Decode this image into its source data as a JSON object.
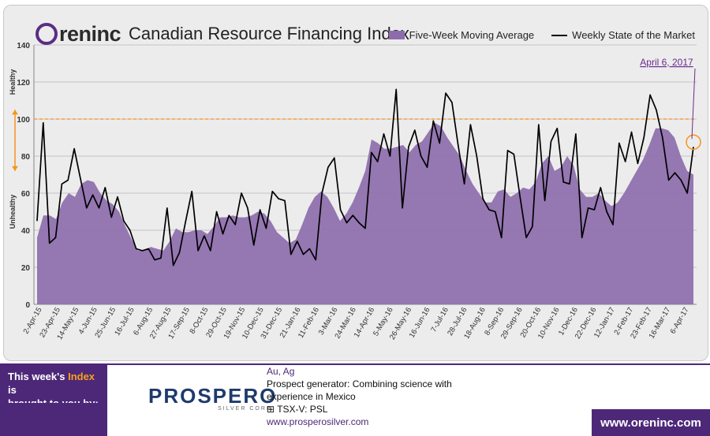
{
  "header": {
    "brand": "reninc",
    "title": "Canadian Resource Financing Index"
  },
  "legend": {
    "area_label": "Five-Week Moving Average",
    "line_label": "Weekly State of the Market"
  },
  "annotation": {
    "date_label": "April 6, 2017"
  },
  "colors": {
    "area": "#8d6cad",
    "line": "#000000",
    "threshold": "#f7931e",
    "annotation": "#6a2c8e",
    "brand": "#4d2878"
  },
  "chart_data": {
    "type": "area",
    "ylim": [
      0,
      140
    ],
    "yticks": [
      0,
      20,
      40,
      60,
      80,
      100,
      120,
      140
    ],
    "threshold": 100,
    "y_side_labels": {
      "upper": "Healthy",
      "lower": "Unhealthy"
    },
    "x_ticks": [
      "2-Apr-15",
      "23-Apr-15",
      "14-May-15",
      "4-Jun-15",
      "25-Jun-15",
      "16-Jul-15",
      "6-Aug-15",
      "27-Aug-15",
      "17-Sep-15",
      "8-Oct-15",
      "29-Oct-15",
      "19-Nov-15",
      "10-Dec-15",
      "31-Dec-15",
      "21-Jan-16",
      "11-Feb-16",
      "3-Mar-16",
      "24-Mar-16",
      "14-Apr-16",
      "5-May-16",
      "26-May-16",
      "16-Jun-16",
      "7-Jul-16",
      "28-Jul-16",
      "18-Aug-16",
      "8-Sep-16",
      "29-Sep-16",
      "20-Oct-16",
      "10-Nov-16",
      "1-Dec-16",
      "22-Dec-16",
      "12-Jan-17",
      "2-Feb-17",
      "23-Feb-17",
      "16-Mar-17",
      "6-Apr-17"
    ],
    "series": [
      {
        "name": "Five-Week Moving Average",
        "values": [
          36,
          48,
          48,
          46,
          55,
          60,
          58,
          65,
          67,
          66,
          60,
          56,
          54,
          50,
          42,
          35,
          29,
          29,
          31,
          30,
          29,
          34,
          41,
          39,
          39,
          40,
          40,
          38,
          42,
          47,
          47,
          48,
          47,
          47,
          48,
          50,
          49,
          45,
          39,
          36,
          33,
          35,
          43,
          52,
          58,
          61,
          58,
          52,
          45,
          49,
          55,
          63,
          72,
          89,
          87,
          84,
          84,
          85,
          86,
          82,
          86,
          88,
          93,
          98,
          96,
          90,
          85,
          80,
          72,
          65,
          60,
          55,
          55,
          61,
          62,
          58,
          60,
          63,
          62,
          66,
          76,
          80,
          72,
          74,
          80,
          75,
          62,
          58,
          58,
          60,
          56,
          53,
          55,
          60,
          66,
          72,
          78,
          86,
          95,
          95,
          94,
          90,
          80,
          72,
          70
        ]
      },
      {
        "name": "Weekly State of the Market",
        "values": [
          45,
          98,
          33,
          36,
          65,
          67,
          84,
          68,
          52,
          59,
          52,
          63,
          47,
          58,
          45,
          40,
          30,
          29,
          30,
          24,
          25,
          52,
          21,
          28,
          45,
          61,
          29,
          37,
          29,
          50,
          38,
          48,
          43,
          60,
          52,
          32,
          51,
          41,
          61,
          57,
          56,
          27,
          34,
          27,
          30,
          24,
          60,
          74,
          79,
          51,
          44,
          48,
          44,
          41,
          82,
          77,
          92,
          80,
          116,
          52,
          85,
          94,
          80,
          74,
          99,
          87,
          114,
          109,
          86,
          65,
          97,
          80,
          57,
          51,
          50,
          36,
          83,
          81,
          58,
          36,
          42,
          97,
          56,
          88,
          95,
          66,
          65,
          92,
          36,
          52,
          51,
          63,
          50,
          43,
          87,
          77,
          93,
          76,
          90,
          113,
          105,
          90,
          67,
          71,
          67,
          60,
          85
        ]
      }
    ]
  },
  "footer": {
    "sponsor_line1": "This week's ",
    "sponsor_highlight": "Index",
    "sponsor_line1_end": " is",
    "sponsor_line2": "brought to you by:",
    "logo_text": "PROSPERO",
    "logo_sub": "SILVER CORP.",
    "metals": "Au, Ag",
    "description_1": "Prospect generator: Combining science with",
    "description_2": "experience in Mexico",
    "ticker_prefix": "TSX-V:",
    "ticker": "PSL",
    "website": "www.prosperosilver.com",
    "oren_url": "www.oreninc.com"
  }
}
